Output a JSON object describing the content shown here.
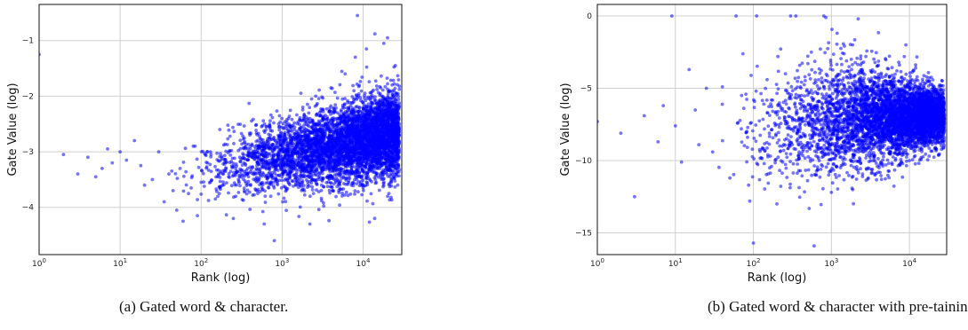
{
  "chart_data": [
    {
      "type": "scatter",
      "title": "",
      "xlabel": "Rank (log)",
      "ylabel": "Gate Value (log)",
      "xscale": "log",
      "xlim": [
        1,
        30000
      ],
      "ylim": [
        -4.85,
        -0.35
      ],
      "grid": true,
      "color": "#0000ff",
      "xtick_labels": [
        "10^0",
        "10^1",
        "10^2",
        "10^3",
        "10^4"
      ],
      "ytick_values": [
        -1,
        -2,
        -3,
        -4
      ],
      "ytick_labels": [
        "−1",
        "−2",
        "−3",
        "−4"
      ],
      "caption": "(a)  Gated word & character.",
      "points": [
        [
          1,
          -1.25
        ],
        [
          2,
          -3.05
        ],
        [
          3,
          -3.4
        ],
        [
          4,
          -3.1
        ],
        [
          5,
          -3.45
        ],
        [
          6,
          -3.3
        ],
        [
          7,
          -2.95
        ],
        [
          8,
          -3.2
        ],
        [
          10,
          -3.0
        ],
        [
          12,
          -3.15
        ],
        [
          15,
          -2.8
        ],
        [
          18,
          -3.25
        ],
        [
          20,
          -3.6
        ],
        [
          25,
          -3.5
        ],
        [
          30,
          -3.0
        ],
        [
          35,
          -3.9
        ],
        [
          40,
          -3.4
        ],
        [
          45,
          -3.7
        ],
        [
          50,
          -4.05
        ],
        [
          55,
          -3.3
        ],
        [
          60,
          -4.25
        ],
        [
          70,
          -3.75
        ],
        [
          80,
          -2.9
        ],
        [
          90,
          -4.15
        ],
        [
          100,
          -3.55
        ],
        [
          120,
          -3.2
        ],
        [
          150,
          -3.85
        ],
        [
          170,
          -2.6
        ],
        [
          200,
          -3.35
        ],
        [
          250,
          -4.2
        ],
        [
          300,
          -3.1
        ],
        [
          400,
          -2.7
        ],
        [
          500,
          -3.75
        ],
        [
          600,
          -4.3
        ],
        [
          700,
          -2.55
        ],
        [
          800,
          -4.6
        ],
        [
          900,
          -3.05
        ],
        [
          1200,
          -2.4
        ],
        [
          1500,
          -3.6
        ],
        [
          1800,
          -2.2
        ],
        [
          2200,
          -4.3
        ],
        [
          2600,
          -2.0
        ],
        [
          3000,
          -3.3
        ],
        [
          4000,
          -1.85
        ],
        [
          5000,
          -3.7
        ],
        [
          6000,
          -1.6
        ],
        [
          7000,
          -3.1
        ],
        [
          8000,
          -1.3
        ],
        [
          8500,
          -0.55
        ],
        [
          9000,
          -2.2
        ],
        [
          11000,
          -1.15
        ],
        [
          12000,
          -3.35
        ],
        [
          14000,
          -0.88
        ],
        [
          16000,
          -2.9
        ],
        [
          18000,
          -1.05
        ],
        [
          20000,
          -0.95
        ],
        [
          22000,
          -2.4
        ],
        [
          25000,
          -1.45
        ],
        [
          28000,
          -2.7
        ]
      ]
    },
    {
      "type": "scatter",
      "title": "",
      "xlabel": "Rank (log)",
      "ylabel": "Gate Value (log)",
      "xscale": "log",
      "xlim": [
        1,
        30000
      ],
      "ylim": [
        -16.5,
        0.8
      ],
      "grid": true,
      "color": "#0000ff",
      "xtick_labels": [
        "10^0",
        "10^1",
        "10^2",
        "10^3",
        "10^4"
      ],
      "ytick_values": [
        0,
        -5,
        -10,
        -15
      ],
      "ytick_labels": [
        "0",
        "−5",
        "−10",
        "−15"
      ],
      "caption": "(b)  Gated word & character with pre-tainin",
      "points": [
        [
          1,
          -7.3
        ],
        [
          2,
          -8.1
        ],
        [
          3,
          -12.5
        ],
        [
          4,
          -6.9
        ],
        [
          6,
          -8.7
        ],
        [
          7,
          -6.2
        ],
        [
          9,
          0.0
        ],
        [
          10,
          -7.6
        ],
        [
          12,
          -10.1
        ],
        [
          15,
          -3.7
        ],
        [
          18,
          -6.5
        ],
        [
          20,
          -8.9
        ],
        [
          25,
          -5.0
        ],
        [
          30,
          -9.4
        ],
        [
          40,
          -6.1
        ],
        [
          50,
          -11.2
        ],
        [
          60,
          0.0
        ],
        [
          70,
          -7.8
        ],
        [
          80,
          -5.4
        ],
        [
          90,
          -12.8
        ],
        [
          100,
          -15.7
        ],
        [
          110,
          0.0
        ],
        [
          130,
          -9.2
        ],
        [
          150,
          -4.4
        ],
        [
          200,
          -13.0
        ],
        [
          250,
          -6.6
        ],
        [
          300,
          0.0
        ],
        [
          350,
          0.0
        ],
        [
          400,
          -10.7
        ],
        [
          500,
          -3.3
        ],
        [
          600,
          -15.9
        ],
        [
          700,
          -8.3
        ],
        [
          800,
          0.0
        ],
        [
          850,
          -0.1
        ],
        [
          1000,
          -12.2
        ],
        [
          1200,
          -4.8
        ],
        [
          1500,
          -9.9
        ],
        [
          1800,
          -3.0
        ],
        [
          2200,
          -0.2
        ],
        [
          2500,
          -11.1
        ],
        [
          3000,
          -5.7
        ],
        [
          4000,
          -3.4
        ],
        [
          5000,
          -10.3
        ],
        [
          6000,
          -4.1
        ],
        [
          7000,
          -9.6
        ],
        [
          8000,
          -5.0
        ],
        [
          9000,
          -2.0
        ],
        [
          10000,
          -10.0
        ],
        [
          12000,
          -3.6
        ],
        [
          15000,
          -8.8
        ],
        [
          18000,
          -4.5
        ],
        [
          22000,
          -9.2
        ],
        [
          26000,
          -5.5
        ],
        [
          28000,
          -7.9
        ]
      ]
    }
  ]
}
